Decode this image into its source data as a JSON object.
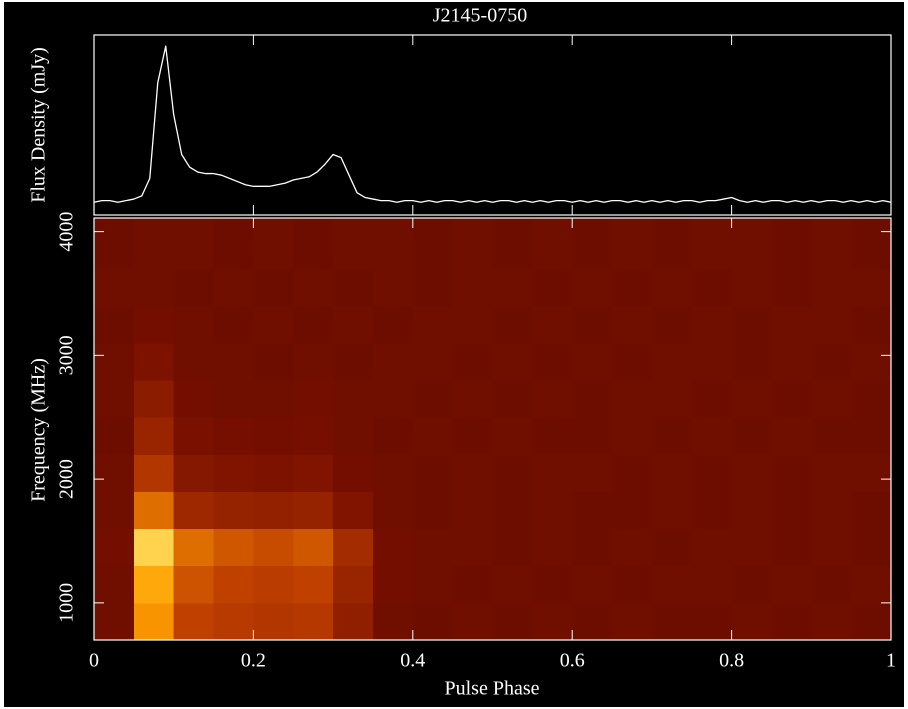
{
  "chart_data": [
    {
      "type": "line",
      "title": "J2145-0750",
      "ylabel": "Flux Density (mJy)",
      "color": "#ffffff",
      "xlim": [
        0,
        1
      ],
      "ylim": [
        -0.08,
        1.05
      ],
      "x": [
        0,
        0.01,
        0.02,
        0.03,
        0.04,
        0.05,
        0.06,
        0.07,
        0.08,
        0.09,
        0.1,
        0.11,
        0.12,
        0.13,
        0.14,
        0.15,
        0.16,
        0.17,
        0.18,
        0.19,
        0.2,
        0.21,
        0.22,
        0.23,
        0.24,
        0.25,
        0.26,
        0.27,
        0.28,
        0.29,
        0.3,
        0.31,
        0.32,
        0.33,
        0.34,
        0.35,
        0.36,
        0.37,
        0.38,
        0.39,
        0.4,
        0.41,
        0.42,
        0.43,
        0.44,
        0.45,
        0.46,
        0.47,
        0.48,
        0.49,
        0.5,
        0.51,
        0.52,
        0.53,
        0.54,
        0.55,
        0.56,
        0.57,
        0.58,
        0.59,
        0.6,
        0.61,
        0.62,
        0.63,
        0.64,
        0.65,
        0.66,
        0.67,
        0.68,
        0.69,
        0.7,
        0.71,
        0.72,
        0.73,
        0.74,
        0.75,
        0.76,
        0.77,
        0.78,
        0.79,
        0.8,
        0.81,
        0.82,
        0.83,
        0.84,
        0.85,
        0.86,
        0.87,
        0.88,
        0.89,
        0.9,
        0.91,
        0.92,
        0.93,
        0.94,
        0.95,
        0.96,
        0.97,
        0.98,
        0.99,
        1
      ],
      "values": [
        0,
        0.01,
        0.01,
        0,
        0.01,
        0.02,
        0.04,
        0.15,
        0.75,
        0.98,
        0.55,
        0.3,
        0.22,
        0.19,
        0.18,
        0.18,
        0.17,
        0.15,
        0.13,
        0.11,
        0.1,
        0.1,
        0.1,
        0.11,
        0.12,
        0.14,
        0.15,
        0.16,
        0.19,
        0.24,
        0.3,
        0.28,
        0.17,
        0.06,
        0.03,
        0.02,
        0.01,
        0.01,
        0,
        0.01,
        0.01,
        0,
        0.01,
        0,
        0.01,
        0.01,
        0,
        0.01,
        0,
        0.01,
        0,
        0.01,
        0.01,
        0,
        0.01,
        0,
        0.01,
        0,
        0.01,
        0.01,
        0,
        0.01,
        0,
        0.01,
        0,
        0.01,
        0.01,
        0,
        0.01,
        0,
        0.01,
        0,
        0.01,
        0,
        0.01,
        0.01,
        0,
        0.01,
        0.01,
        0.02,
        0.03,
        0.01,
        0,
        0.01,
        0,
        0.01,
        0.01,
        0,
        0.01,
        0,
        0.01,
        0,
        0.01,
        0.01,
        0,
        0.01,
        0,
        0.01,
        0,
        0.01,
        0
      ]
    },
    {
      "type": "heatmap",
      "xlabel": "Pulse Phase",
      "ylabel": "Frequency (MHz)",
      "xlim": [
        0,
        1
      ],
      "ylim": [
        700,
        4110
      ],
      "xticks": [
        0,
        {
          "value": 0.2,
          "label": "0.2"
        },
        {
          "value": 0.4,
          "label": "0.4"
        },
        {
          "value": 0.6,
          "label": "0.6"
        },
        {
          "value": 0.8,
          "label": "0.8"
        },
        1
      ],
      "yticks": [
        1000,
        2000,
        3000,
        4000
      ],
      "colormap": [
        "#2a0000",
        "#7a1000",
        "#c04000",
        "#ffa000",
        "#ffe060"
      ],
      "xbins": [
        0,
        0.05,
        0.1,
        0.15,
        0.2,
        0.25,
        0.3,
        0.35,
        0.4,
        0.45,
        0.5,
        0.55,
        0.6,
        0.65,
        0.7,
        0.75,
        0.8,
        0.85,
        0.9,
        0.95,
        1
      ],
      "ybins": [
        700,
        1000,
        1300,
        1600,
        1900,
        2200,
        2500,
        2800,
        3100,
        3400,
        3700,
        4110
      ],
      "values": [
        [
          0.22,
          0.72,
          0.5,
          0.47,
          0.45,
          0.46,
          0.33,
          0.22,
          0.21,
          0.22,
          0.21,
          0.22,
          0.21,
          0.22,
          0.21,
          0.21,
          0.22,
          0.21,
          0.22,
          0.21
        ],
        [
          0.22,
          0.78,
          0.55,
          0.5,
          0.48,
          0.5,
          0.36,
          0.23,
          0.22,
          0.21,
          0.22,
          0.21,
          0.22,
          0.21,
          0.22,
          0.22,
          0.21,
          0.22,
          0.21,
          0.22
        ],
        [
          0.23,
          0.95,
          0.62,
          0.56,
          0.53,
          0.56,
          0.4,
          0.23,
          0.22,
          0.22,
          0.21,
          0.22,
          0.21,
          0.22,
          0.21,
          0.22,
          0.22,
          0.21,
          0.22,
          0.21
        ],
        [
          0.22,
          0.62,
          0.38,
          0.35,
          0.34,
          0.35,
          0.27,
          0.22,
          0.21,
          0.22,
          0.21,
          0.22,
          0.21,
          0.21,
          0.22,
          0.21,
          0.22,
          0.21,
          0.22,
          0.21
        ],
        [
          0.22,
          0.45,
          0.29,
          0.27,
          0.26,
          0.27,
          0.23,
          0.22,
          0.21,
          0.22,
          0.21,
          0.22,
          0.22,
          0.21,
          0.22,
          0.21,
          0.22,
          0.21,
          0.22,
          0.22
        ],
        [
          0.21,
          0.36,
          0.25,
          0.24,
          0.23,
          0.24,
          0.22,
          0.21,
          0.22,
          0.21,
          0.22,
          0.21,
          0.21,
          0.22,
          0.21,
          0.22,
          0.21,
          0.22,
          0.21,
          0.21
        ],
        [
          0.22,
          0.31,
          0.23,
          0.22,
          0.22,
          0.23,
          0.22,
          0.22,
          0.21,
          0.22,
          0.21,
          0.22,
          0.21,
          0.22,
          0.22,
          0.21,
          0.22,
          0.21,
          0.22,
          0.21
        ],
        [
          0.22,
          0.26,
          0.22,
          0.22,
          0.21,
          0.22,
          0.21,
          0.22,
          0.22,
          0.21,
          0.22,
          0.21,
          0.22,
          0.21,
          0.22,
          0.22,
          0.21,
          0.22,
          0.21,
          0.22
        ],
        [
          0.21,
          0.23,
          0.22,
          0.21,
          0.22,
          0.21,
          0.22,
          0.21,
          0.22,
          0.22,
          0.21,
          0.22,
          0.21,
          0.22,
          0.21,
          0.22,
          0.21,
          0.22,
          0.22,
          0.21
        ],
        [
          0.22,
          0.22,
          0.21,
          0.22,
          0.21,
          0.22,
          0.21,
          0.22,
          0.21,
          0.22,
          0.22,
          0.21,
          0.22,
          0.21,
          0.22,
          0.21,
          0.22,
          0.21,
          0.22,
          0.22
        ],
        [
          0.21,
          0.22,
          0.22,
          0.21,
          0.22,
          0.21,
          0.22,
          0.22,
          0.21,
          0.22,
          0.21,
          0.22,
          0.21,
          0.22,
          0.21,
          0.22,
          0.22,
          0.21,
          0.22,
          0.21
        ]
      ]
    }
  ]
}
